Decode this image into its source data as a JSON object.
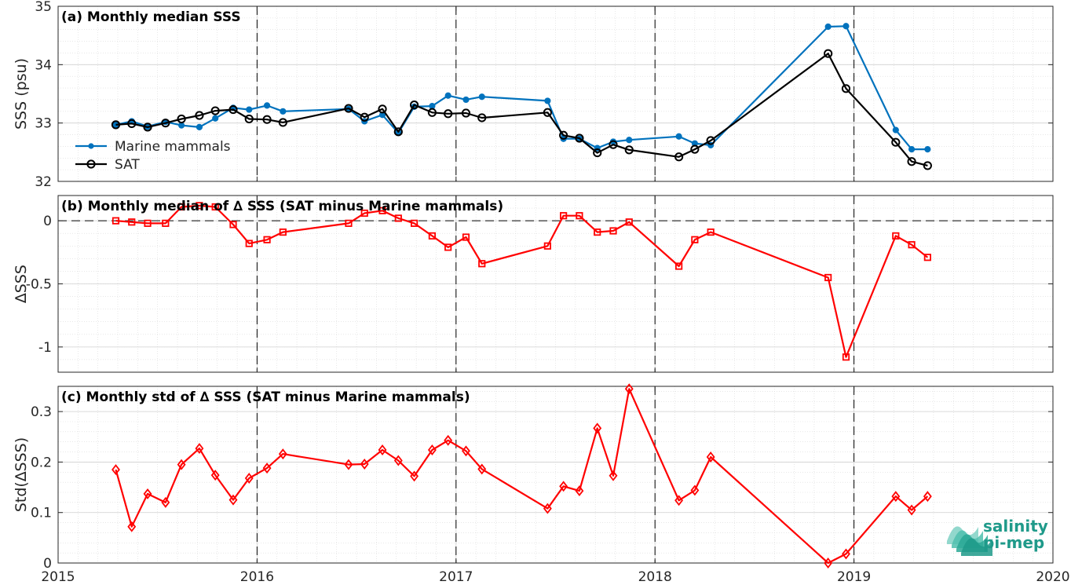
{
  "colors": {
    "marine": "#0072bd",
    "sat": "#000000",
    "delta": "#ff0000",
    "logo": "#1f9a8a"
  },
  "logo": {
    "line1": "salinity",
    "line2": "pi-mep"
  },
  "chart_data": [
    {
      "id": "a",
      "type": "line",
      "title": "(a) Monthly median SSS",
      "ylabel": "SSS (psu)",
      "xlim": [
        2015,
        2020
      ],
      "ylim": [
        32,
        35
      ],
      "xticks": [
        2015,
        2016,
        2017,
        2018,
        2019,
        2020
      ],
      "yticks": [
        32,
        33,
        34,
        35
      ],
      "grid": true,
      "legend_position": "bottom-left",
      "series": [
        {
          "name": "Marine mammals",
          "marker": "dot",
          "x": [
            2015.29,
            2015.37,
            2015.45,
            2015.54,
            2015.62,
            2015.71,
            2015.79,
            2015.88,
            2015.96,
            2016.05,
            2016.13,
            2016.46,
            2016.54,
            2016.63,
            2016.71,
            2016.79,
            2016.88,
            2016.96,
            2017.05,
            2017.13,
            2017.46,
            2017.54,
            2017.62,
            2017.71,
            2017.79,
            2017.87,
            2018.12,
            2018.2,
            2018.28,
            2018.87,
            2018.96,
            2019.21,
            2019.29,
            2019.37
          ],
          "y": [
            32.97,
            33.03,
            32.94,
            33.02,
            32.96,
            32.93,
            33.08,
            33.26,
            33.23,
            33.3,
            33.2,
            33.24,
            33.03,
            33.14,
            32.83,
            33.28,
            33.29,
            33.47,
            33.4,
            33.45,
            33.38,
            32.73,
            32.73,
            32.57,
            32.68,
            32.71,
            32.77,
            32.65,
            32.62,
            34.65,
            34.66,
            32.88,
            32.55,
            32.55
          ]
        },
        {
          "name": "SAT",
          "marker": "circle",
          "x": [
            2015.29,
            2015.37,
            2015.45,
            2015.54,
            2015.62,
            2015.71,
            2015.79,
            2015.88,
            2015.96,
            2016.05,
            2016.13,
            2016.46,
            2016.54,
            2016.63,
            2016.71,
            2016.79,
            2016.88,
            2016.96,
            2017.05,
            2017.13,
            2017.46,
            2017.54,
            2017.62,
            2017.71,
            2017.79,
            2017.87,
            2018.12,
            2018.2,
            2018.28,
            2018.87,
            2018.96,
            2019.21,
            2019.29,
            2019.37
          ],
          "y": [
            32.97,
            32.99,
            32.93,
            33.0,
            33.07,
            33.13,
            33.21,
            33.23,
            33.07,
            33.06,
            33.01,
            33.25,
            33.1,
            33.24,
            32.85,
            33.31,
            33.18,
            33.16,
            33.17,
            33.09,
            33.18,
            32.79,
            32.74,
            32.49,
            32.63,
            32.54,
            32.42,
            32.55,
            32.7,
            34.19,
            33.59,
            32.67,
            32.34,
            32.27
          ]
        }
      ]
    },
    {
      "id": "b",
      "type": "line",
      "title": "(b) Monthly median of ∆ SSS (SAT minus Marine mammals)",
      "ylabel": "∆SSS",
      "xlim": [
        2015,
        2020
      ],
      "ylim": [
        -1.2,
        0.2
      ],
      "xticks": [
        2015,
        2016,
        2017,
        2018,
        2019,
        2020
      ],
      "yticks": [
        -1,
        -0.5,
        0
      ],
      "ytick_labels": [
        "-1",
        "-0.5",
        "0"
      ],
      "grid": true,
      "zero_line": true,
      "series": [
        {
          "marker": "square",
          "x": [
            2015.29,
            2015.37,
            2015.45,
            2015.54,
            2015.62,
            2015.71,
            2015.79,
            2015.88,
            2015.96,
            2016.05,
            2016.13,
            2016.46,
            2016.54,
            2016.63,
            2016.71,
            2016.79,
            2016.88,
            2016.96,
            2017.05,
            2017.13,
            2017.46,
            2017.54,
            2017.62,
            2017.71,
            2017.79,
            2017.87,
            2018.12,
            2018.2,
            2018.28,
            2018.87,
            2018.96,
            2019.21,
            2019.29,
            2019.37
          ],
          "y": [
            0.0,
            -0.01,
            -0.02,
            -0.02,
            0.11,
            0.12,
            0.11,
            -0.03,
            -0.18,
            -0.15,
            -0.09,
            -0.02,
            0.06,
            0.08,
            0.02,
            -0.02,
            -0.12,
            -0.21,
            -0.13,
            -0.34,
            -0.2,
            0.04,
            0.04,
            -0.09,
            -0.08,
            -0.01,
            -0.36,
            -0.15,
            -0.09,
            -0.45,
            -1.08,
            -0.12,
            -0.19,
            -0.29
          ]
        }
      ]
    },
    {
      "id": "c",
      "type": "line",
      "title": "(c) Monthly std of ∆ SSS (SAT minus Marine mammals)",
      "ylabel": "Std(∆SSS)",
      "xlim": [
        2015,
        2020
      ],
      "ylim": [
        0,
        0.35
      ],
      "xticks": [
        2015,
        2016,
        2017,
        2018,
        2019,
        2020
      ],
      "yticks": [
        0,
        0.1,
        0.2,
        0.3
      ],
      "ytick_labels": [
        "0",
        "0.1",
        "0.2",
        "0.3"
      ],
      "grid": true,
      "series": [
        {
          "marker": "diamond",
          "x": [
            2015.29,
            2015.37,
            2015.45,
            2015.54,
            2015.62,
            2015.71,
            2015.79,
            2015.88,
            2015.96,
            2016.05,
            2016.13,
            2016.46,
            2016.54,
            2016.63,
            2016.71,
            2016.79,
            2016.88,
            2016.96,
            2017.05,
            2017.13,
            2017.46,
            2017.54,
            2017.62,
            2017.71,
            2017.79,
            2017.87,
            2018.12,
            2018.2,
            2018.28,
            2018.87,
            2018.96,
            2019.21,
            2019.29,
            2019.37
          ],
          "y": [
            0.185,
            0.072,
            0.137,
            0.12,
            0.195,
            0.227,
            0.174,
            0.125,
            0.168,
            0.188,
            0.216,
            0.195,
            0.196,
            0.224,
            0.203,
            0.172,
            0.224,
            0.243,
            0.222,
            0.186,
            0.108,
            0.152,
            0.143,
            0.267,
            0.173,
            0.345,
            0.124,
            0.144,
            0.21,
            0.0,
            0.018,
            0.132,
            0.105,
            0.132
          ]
        }
      ]
    }
  ]
}
